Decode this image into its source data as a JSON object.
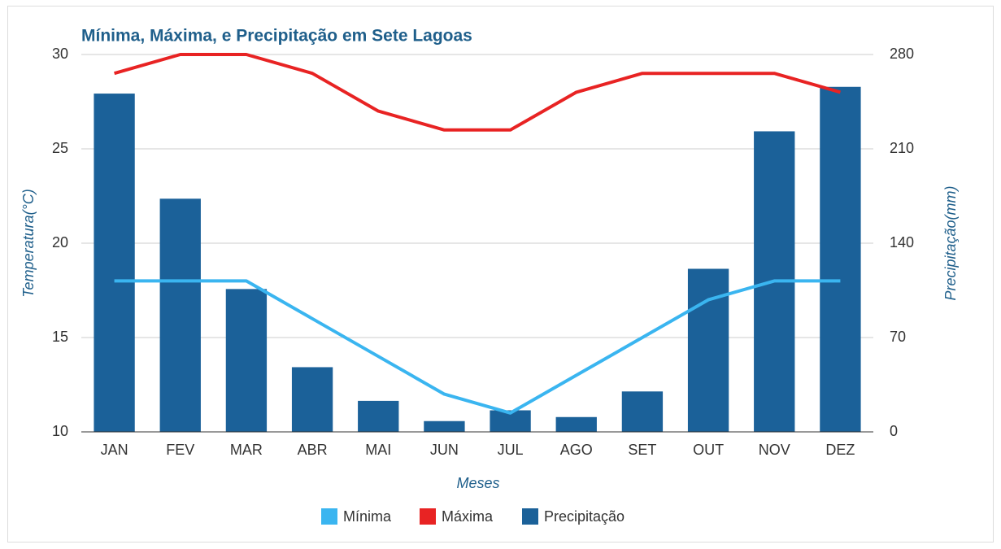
{
  "chart_data": {
    "type": "bar",
    "title": "Mínima, Máxima, e Precipitação em Sete Lagoas",
    "x_label": "Meses",
    "y_label": "Temperatura(°C)",
    "y2_label": "Precipitação(mm)",
    "categories": [
      "JAN",
      "FEV",
      "MAR",
      "ABR",
      "MAI",
      "JUN",
      "JUL",
      "AGO",
      "SET",
      "OUT",
      "NOV",
      "DEZ"
    ],
    "series": [
      {
        "name": "Mínima",
        "type": "line",
        "color": "#3ab5f0",
        "axis": "y",
        "values": [
          18,
          18,
          18,
          16,
          14,
          12,
          11,
          13,
          15,
          17,
          18,
          18
        ]
      },
      {
        "name": "Máxima",
        "type": "line",
        "color": "#e82323",
        "axis": "y",
        "values": [
          29,
          30,
          30,
          29,
          27,
          26,
          26,
          28,
          29,
          29,
          29,
          28
        ]
      },
      {
        "name": "Precipitação",
        "type": "bar",
        "color": "#1b6199",
        "axis": "y2",
        "values": [
          251,
          173,
          106,
          48,
          23,
          8,
          16,
          11,
          30,
          121,
          223,
          256
        ]
      }
    ],
    "ylim": [
      10,
      30
    ],
    "yticks": [
      10,
      15,
      20,
      25,
      30
    ],
    "y2lim": [
      0,
      280
    ],
    "y2ticks": [
      0,
      70,
      140,
      210,
      280
    ],
    "grid": true,
    "legend": "bottom"
  }
}
